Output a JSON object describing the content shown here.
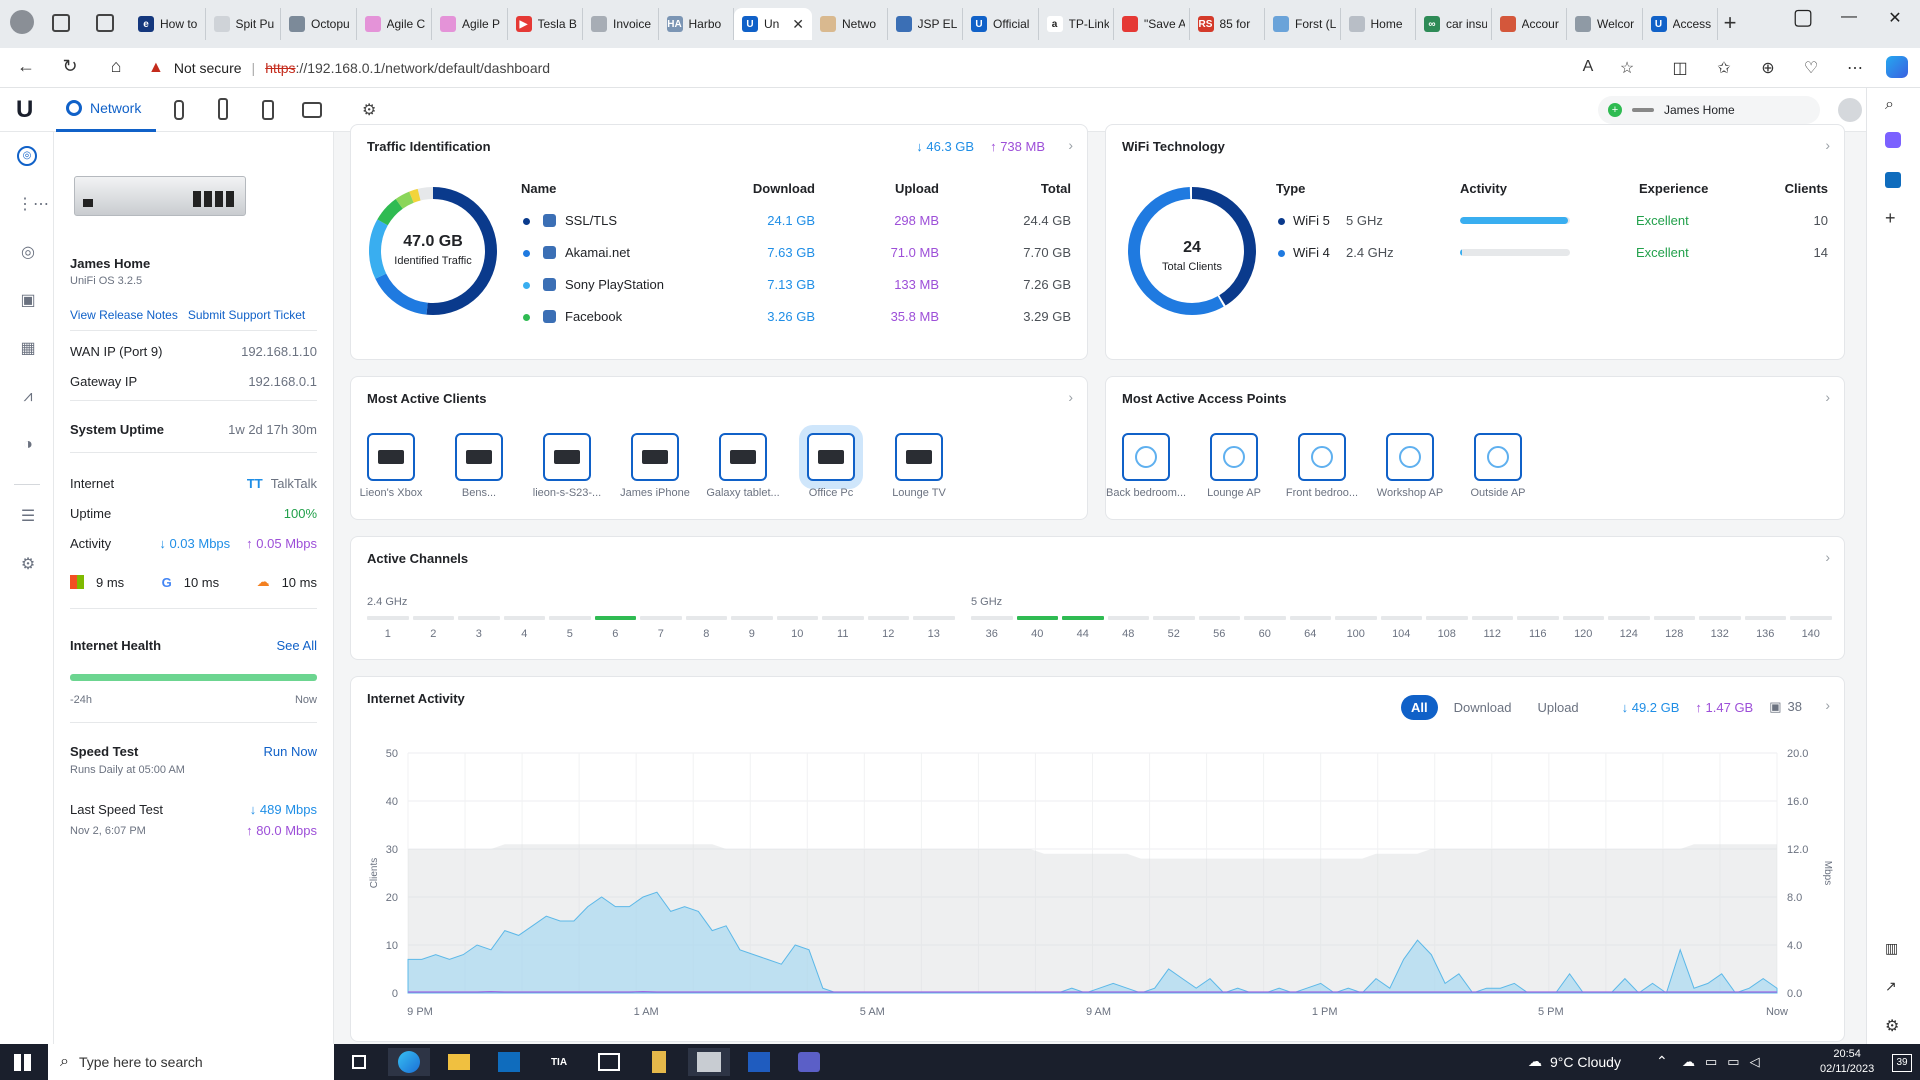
{
  "browser": {
    "tabs": [
      {
        "title": "How to",
        "color": "#14377d",
        "glyph": "e"
      },
      {
        "title": "Spit Pu",
        "color": "#cfd3d8",
        "glyph": ""
      },
      {
        "title": "Octopu",
        "color": "#7c8a99",
        "glyph": ""
      },
      {
        "title": "Agile C",
        "color": "#e493d8",
        "glyph": ""
      },
      {
        "title": "Agile P",
        "color": "#e493d8",
        "glyph": ""
      },
      {
        "title": "Tesla B",
        "color": "#e53935",
        "glyph": "▶"
      },
      {
        "title": "Invoice",
        "color": "#a7adb5",
        "glyph": ""
      },
      {
        "title": "Harbo",
        "color": "#7b95b4",
        "glyph": "HA"
      },
      {
        "title": "Un",
        "color": "#1061c8",
        "glyph": "U"
      },
      {
        "title": "Netwo",
        "color": "#d9b98f",
        "glyph": ""
      },
      {
        "title": "JSP ELE",
        "color": "#3b6fb5",
        "glyph": ""
      },
      {
        "title": "Official",
        "color": "#1061c8",
        "glyph": "U"
      },
      {
        "title": "TP-Link",
        "color": "#ffffff",
        "glyph": "a"
      },
      {
        "title": "\"Save A",
        "color": "#e53935",
        "glyph": ""
      },
      {
        "title": "85 for",
        "color": "#d43a2a",
        "glyph": "RS"
      },
      {
        "title": "Forst (L",
        "color": "#6aa3d9",
        "glyph": ""
      },
      {
        "title": "Home",
        "color": "#b8bec6",
        "glyph": ""
      },
      {
        "title": "car insu",
        "color": "#2e8b57",
        "glyph": "∞"
      },
      {
        "title": "Accour",
        "color": "#d4573b",
        "glyph": ""
      },
      {
        "title": "Welcor",
        "color": "#8f9aa5",
        "glyph": ""
      },
      {
        "title": "Access",
        "color": "#1061c8",
        "glyph": "U"
      }
    ],
    "not_secure": "Not secure",
    "url_scheme": "https",
    "url_rest": "://192.168.0.1/network/default/dashboard"
  },
  "topbar": {
    "app_label": "Network",
    "site_name": "James Home"
  },
  "device": {
    "name": "James Home",
    "os": "UniFi OS 3.2.5",
    "release_notes": "View Release Notes",
    "support": "Submit Support Ticket",
    "wan_label": "WAN IP (Port 9)",
    "wan_value": "192.168.1.10",
    "gw_label": "Gateway IP",
    "gw_value": "192.168.0.1",
    "uptime_label": "System Uptime",
    "uptime_value": "1w 2d 17h 30m",
    "internet_label": "Internet",
    "isp_logo": "TT",
    "isp_name": "TalkTalk",
    "uptime2_label": "Uptime",
    "uptime2_value": "100%",
    "activity_label": "Activity",
    "activity_down": "↓ 0.03 Mbps",
    "activity_up": "↑ 0.05 Mbps",
    "lat1": "9 ms",
    "lat2": "10 ms",
    "lat3": "10 ms",
    "health_label": "Internet Health",
    "health_link": "See All",
    "health_start": "-24h",
    "health_end": "Now",
    "speed_label": "Speed Test",
    "speed_link": "Run Now",
    "speed_sched": "Runs Daily at 05:00 AM",
    "last_label": "Last Speed Test",
    "last_date": "Nov 2, 6:07 PM",
    "last_down": "↓ 489 Mbps",
    "last_up": "↑ 80.0 Mbps"
  },
  "traffic": {
    "title": "Traffic Identification",
    "down": "↓ 46.3 GB",
    "up": "↑ 738 MB",
    "donut_value": "47.0 GB",
    "donut_label": "Identified Traffic",
    "headers": {
      "name": "Name",
      "download": "Download",
      "upload": "Upload",
      "total": "Total"
    },
    "rows": [
      {
        "name": "SSL/TLS",
        "download": "24.1 GB",
        "upload": "298 MB",
        "total": "24.4 GB",
        "dot": "#0a3a8c",
        "icon": "shield-icon"
      },
      {
        "name": "Akamai.net",
        "download": "7.63 GB",
        "upload": "71.0 MB",
        "total": "7.70 GB",
        "dot": "#1f7ae0",
        "icon": "akamai-icon"
      },
      {
        "name": "Sony PlayStation",
        "download": "7.13 GB",
        "upload": "133 MB",
        "total": "7.26 GB",
        "dot": "#39aef0",
        "icon": "playstation-icon"
      },
      {
        "name": "Facebook",
        "download": "3.26 GB",
        "upload": "35.8 MB",
        "total": "3.29 GB",
        "dot": "#2fbb52",
        "icon": "facebook-icon"
      }
    ]
  },
  "wifi": {
    "title": "WiFi Technology",
    "donut_value": "24",
    "donut_label": "Total Clients",
    "headers": {
      "type": "Type",
      "activity": "Activity",
      "experience": "Experience",
      "clients": "Clients"
    },
    "rows": [
      {
        "type": "WiFi 5",
        "band": "5 GHz",
        "activity_level": 0.98,
        "experience": "Excellent",
        "clients": "10",
        "dot": "#0a3a8c"
      },
      {
        "type": "WiFi 4",
        "band": "2.4 GHz",
        "activity_level": 0.02,
        "experience": "Excellent",
        "clients": "14",
        "dot": "#1f7ae0"
      }
    ]
  },
  "clients": {
    "title": "Most Active Clients",
    "items": [
      "Lieon's Xbox",
      "Bens...",
      "lieon-s-S23-...",
      "James iPhone",
      "Galaxy tablet...",
      "Office Pc",
      "Lounge TV"
    ]
  },
  "aps": {
    "title": "Most Active Access Points",
    "items": [
      "Back bedroom...",
      "Lounge AP",
      "Front bedroo...",
      "Workshop AP",
      "Outside AP"
    ]
  },
  "channels": {
    "title": "Active Channels",
    "band24": "2.4 GHz",
    "band5": "5 GHz",
    "ch24": [
      "1",
      "2",
      "3",
      "4",
      "5",
      "6",
      "7",
      "8",
      "9",
      "10",
      "11",
      "12",
      "13"
    ],
    "ch24_active": [
      "6"
    ],
    "ch5": [
      "36",
      "40",
      "44",
      "48",
      "52",
      "56",
      "60",
      "64",
      "100",
      "104",
      "108",
      "112",
      "116",
      "120",
      "124",
      "128",
      "132",
      "136",
      "140"
    ],
    "ch5_active": [
      "40",
      "44"
    ]
  },
  "activity": {
    "title": "Internet Activity",
    "filters": [
      "All",
      "Download",
      "Upload"
    ],
    "total_down": "↓ 49.2 GB",
    "total_up": "↑ 1.47 GB",
    "client_count": "38"
  },
  "chart_data": {
    "type": "area",
    "x_ticks": [
      "9 PM",
      "1 AM",
      "5 AM",
      "9 AM",
      "1 PM",
      "5 PM",
      "Now"
    ],
    "ylabel_left": "Clients",
    "ylabel_right": "Mbps",
    "yticks_left": [
      "0",
      "10",
      "20",
      "30",
      "40",
      "50"
    ],
    "yticks_right": [
      "0.0",
      "4.0",
      "8.0",
      "12.0",
      "16.0",
      "20.0"
    ],
    "ylim_left": [
      0,
      50
    ],
    "ylim_right": [
      0,
      20
    ],
    "series": [
      {
        "name": "Clients",
        "color": "#d9dbde",
        "values": [
          30,
          30,
          30,
          30,
          30,
          30,
          30,
          31,
          31,
          31,
          31,
          31,
          31,
          31,
          31,
          31,
          31,
          31,
          31,
          31,
          31,
          31,
          31,
          30,
          30,
          30,
          30,
          30,
          30,
          30,
          30,
          30,
          30,
          30,
          30,
          30,
          30,
          30,
          30,
          30,
          30,
          30,
          30,
          30,
          30,
          30,
          29,
          29,
          29,
          29,
          29,
          29,
          29,
          28,
          28,
          28,
          28,
          28,
          28,
          28,
          28,
          28,
          28,
          28,
          28,
          28,
          28,
          28,
          28,
          28,
          29,
          29,
          29,
          29,
          30,
          30,
          30,
          30,
          30,
          30,
          30,
          30,
          30,
          30,
          30,
          30,
          30,
          30,
          30,
          30,
          30,
          30,
          30,
          31,
          31,
          31,
          31,
          31,
          31,
          31
        ]
      },
      {
        "name": "Download",
        "color": "#9fd6f2",
        "values": [
          7,
          7,
          8,
          7,
          8,
          10,
          9,
          13,
          12,
          14,
          16,
          15,
          15,
          18,
          20,
          18,
          18,
          20,
          21,
          17,
          18,
          17,
          13,
          14,
          9,
          8,
          7,
          6,
          10,
          9,
          1,
          0,
          0,
          0,
          0,
          0,
          0,
          0,
          0,
          0,
          0,
          0,
          0,
          0,
          0,
          0,
          0,
          0,
          1,
          0,
          1,
          2,
          1,
          0,
          1,
          5,
          3,
          1,
          3,
          0,
          1,
          0,
          0,
          1,
          0,
          1,
          2,
          0,
          1,
          0,
          3,
          1,
          7,
          11,
          8,
          2,
          4,
          0,
          1,
          1,
          2,
          0,
          0,
          0,
          4,
          0,
          0,
          0,
          3,
          0,
          2,
          0,
          9,
          1,
          2,
          4,
          0,
          1,
          3,
          1
        ]
      },
      {
        "name": "Upload",
        "color": "#a067e0",
        "values": [
          0.2,
          0.2,
          0.2,
          0.2,
          0.2,
          0.2,
          0.3,
          0.2,
          0.2,
          0.2,
          0.2,
          0.2,
          0.2,
          0.2,
          0.2,
          0.2,
          0.2,
          0.3,
          0.2,
          0.2,
          0.2,
          0.2,
          0.2,
          0.2,
          0.2,
          0.2,
          0.2,
          0.2,
          0.2,
          0.2,
          0.2,
          0.2,
          0.2,
          0.2,
          0.2,
          0.2,
          0.2,
          0.2,
          0.2,
          0.2,
          0.2,
          0.2,
          0.2,
          0.2,
          0.2,
          0.2,
          0.2,
          0.2,
          0.2,
          0.2,
          0.2,
          0.2,
          0.2,
          0.2,
          0.2,
          0.2,
          0.2,
          0.2,
          0.2,
          0.2,
          0.2,
          0.2,
          0.2,
          0.2,
          0.2,
          0.2,
          0.2,
          0.2,
          0.2,
          0.2,
          0.2,
          0.2,
          0.2,
          0.2,
          0.2,
          0.2,
          0.2,
          0.2,
          0.2,
          0.2,
          0.2,
          0.2,
          0.2,
          0.2,
          0.2,
          0.2,
          0.2,
          0.2,
          0.2,
          0.2,
          0.2,
          0.2,
          0.2,
          0.2,
          0.2,
          0.2,
          0.2,
          0.2,
          0.2,
          0.2
        ]
      }
    ],
    "grid": true
  },
  "taskbar": {
    "search_placeholder": "Type here to search",
    "weather": "9°C Cloudy",
    "time": "20:54",
    "date": "02/11/2023",
    "notif": "39"
  }
}
